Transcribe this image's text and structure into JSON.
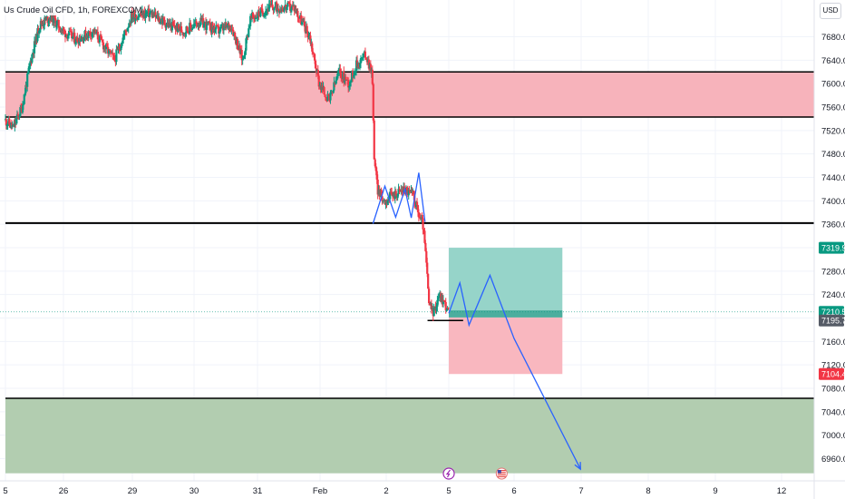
{
  "header": {
    "symbol_title": "Us Crude Oil CFD, 1h, FOREXCOM",
    "currency": "USD"
  },
  "colors": {
    "up": "#089981",
    "down": "#f23645",
    "resistance_zone": "#f7b3bb",
    "support_zone": "#b2cdb0",
    "profit_zone": "#96d4c9",
    "loss_zone": "#f9b7bf",
    "projection": "#2962ff"
  },
  "chart_data": {
    "type": "candlestick",
    "title": "Us Crude Oil CFD, 1h, FOREXCOM",
    "yaxis": {
      "range": [
        6935,
        7735
      ],
      "ticks": [
        6960.0,
        7000.0,
        7040.0,
        7080.0,
        7120.0,
        7160.0,
        7200.0,
        7240.0,
        7280.0,
        7320.0,
        7360.0,
        7400.0,
        7440.0,
        7480.0,
        7520.0,
        7560.0,
        7600.0,
        7640.0,
        7680.0
      ],
      "tick_labels": [
        "6960.0",
        "7000.0",
        "7040.0",
        "7080.0",
        "7120.0",
        "7160.0",
        "7200.0",
        "7240.0",
        "7280.0",
        "7320.0",
        "7360.0",
        "7400.0",
        "7440.0",
        "7480.0",
        "7520.0",
        "7560.0",
        "7600.0",
        "7640.0",
        "7680.0"
      ]
    },
    "xaxis": {
      "ticks": [
        {
          "label": "5",
          "x": 0
        },
        {
          "label": "26",
          "x": 1
        },
        {
          "label": "29",
          "x": 2
        },
        {
          "label": "30",
          "x": 3
        },
        {
          "label": "31",
          "x": 4
        },
        {
          "label": "Feb",
          "x": 5
        },
        {
          "label": "2",
          "x": 6
        },
        {
          "label": "5",
          "x": 7
        },
        {
          "label": "6",
          "x": 8
        },
        {
          "label": "7",
          "x": 9
        },
        {
          "label": "8",
          "x": 10
        },
        {
          "label": "9",
          "x": 11
        },
        {
          "label": "12",
          "x": 12
        }
      ]
    },
    "price_tags": [
      {
        "value": 7319.9,
        "label": "7319.9",
        "color": "#089981"
      },
      {
        "value": 7210.5,
        "label": "7210.5",
        "color": "#089981"
      },
      {
        "value": 7195.7,
        "label": "7195.7",
        "color": "#555b66"
      },
      {
        "value": 7104.4,
        "label": "7104.4",
        "color": "#f23645"
      }
    ],
    "current_price": 7210.5,
    "zones": [
      {
        "name": "resistance",
        "from": 7543,
        "to": 7620,
        "x_start": 0,
        "x_end": 12.7
      },
      {
        "name": "support",
        "from": 6935,
        "to": 7063,
        "x_start": 0,
        "x_end": 12.7
      },
      {
        "name": "position-profit",
        "from": 7201,
        "to": 7319.9,
        "x_start": 7.0,
        "x_end": 8.72
      },
      {
        "name": "position-loss",
        "from": 7104.4,
        "to": 7201,
        "x_start": 7.0,
        "x_end": 8.72
      }
    ],
    "levels": [
      {
        "value": 7620,
        "x_start": 0,
        "x_end": 12.7
      },
      {
        "value": 7543,
        "x_start": 0,
        "x_end": 12.7
      },
      {
        "value": 7362,
        "x_start": 0,
        "x_end": 12.7
      },
      {
        "value": 7063,
        "x_start": 0,
        "x_end": 12.7
      },
      {
        "value": 7195.7,
        "x_start": 6.66,
        "x_end": 7.22
      }
    ],
    "pattern_path": [
      [
        5.8,
        7361
      ],
      [
        5.98,
        7425
      ],
      [
        6.15,
        7372
      ],
      [
        6.3,
        7420
      ],
      [
        6.4,
        7371
      ],
      [
        6.52,
        7448
      ],
      [
        6.62,
        7364
      ]
    ],
    "projection_path": [
      [
        7.0,
        7208
      ],
      [
        7.17,
        7260
      ],
      [
        7.31,
        7188
      ],
      [
        7.63,
        7273
      ],
      [
        8.0,
        7165
      ],
      [
        8.99,
        6942
      ]
    ],
    "events": [
      {
        "x": 7.0
      },
      {
        "x": 7.81
      }
    ],
    "candles": []
  }
}
